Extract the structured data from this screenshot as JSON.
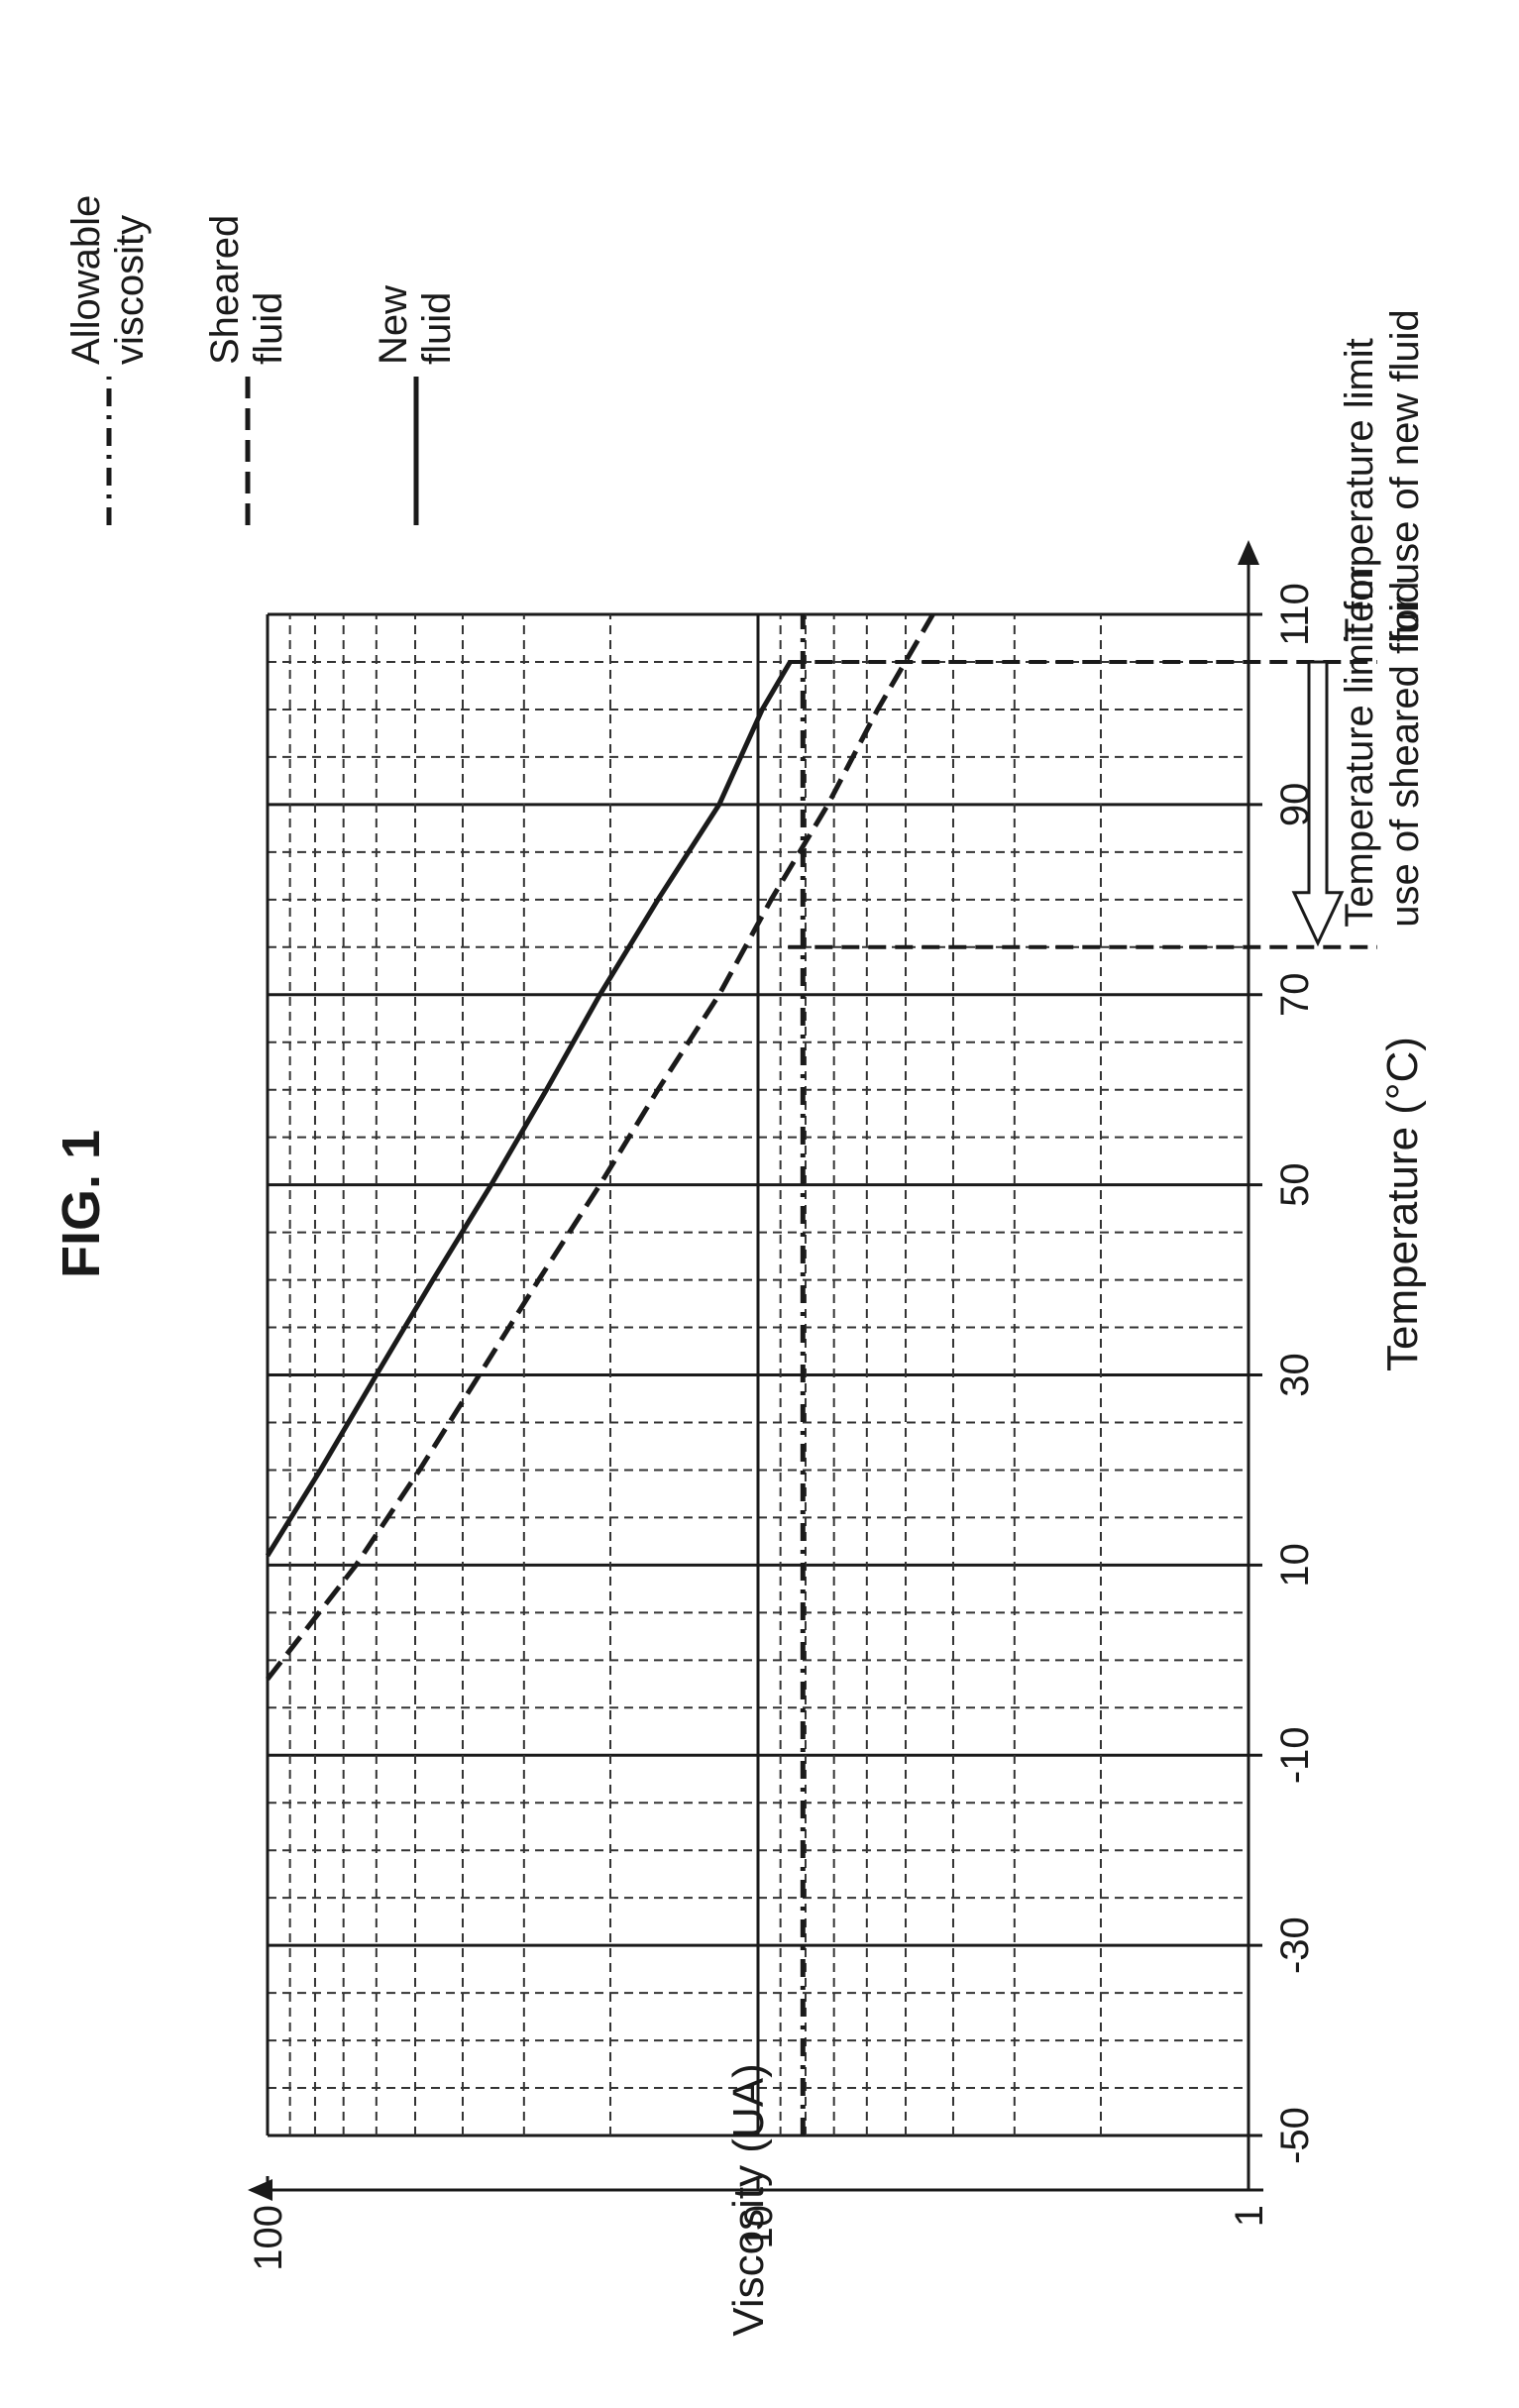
{
  "figure": {
    "title": "FIG. 1"
  },
  "chart_data": {
    "type": "line",
    "orientation": "rotated 90° counter-clockwise on the page",
    "xlabel": "Temperature (°C)",
    "ylabel": "Viscosity (UA)",
    "y_scale": "log",
    "xlim": [
      -50,
      110
    ],
    "ylim": [
      1,
      100
    ],
    "x_ticks": [
      "-50",
      "-30",
      "-10",
      "10",
      "30",
      "50",
      "70",
      "90",
      "110"
    ],
    "y_ticks": [
      "1",
      "10",
      "100"
    ],
    "grid": true,
    "series": [
      {
        "name": "New fluid",
        "style": "solid",
        "x": [
          11,
          20,
          30,
          40,
          50,
          60,
          70,
          80,
          90,
          100,
          105
        ],
        "y": [
          100,
          78,
          60,
          46,
          35,
          27,
          21,
          16,
          12,
          9.8,
          8.6
        ]
      },
      {
        "name": "Sheared fluid",
        "style": "dashed",
        "x": [
          -2,
          10,
          20,
          30,
          40,
          50,
          60,
          70,
          80,
          90,
          100,
          110
        ],
        "y": [
          100,
          66,
          49,
          37,
          28,
          21,
          16,
          12,
          9.4,
          7.2,
          5.7,
          4.4
        ]
      },
      {
        "name": "Allowable viscosity",
        "style": "dash-dot",
        "x": [
          -50,
          110
        ],
        "y": [
          8.1,
          8.1
        ]
      }
    ],
    "annotations": [
      {
        "id": "sheared_limit",
        "text_lines": [
          "Temperature limit for",
          "use of sheared fluid"
        ],
        "x": 75
      },
      {
        "id": "new_limit",
        "text_lines": [
          "Temperature limit",
          "for use of new fluid"
        ],
        "x": 105
      }
    ]
  }
}
